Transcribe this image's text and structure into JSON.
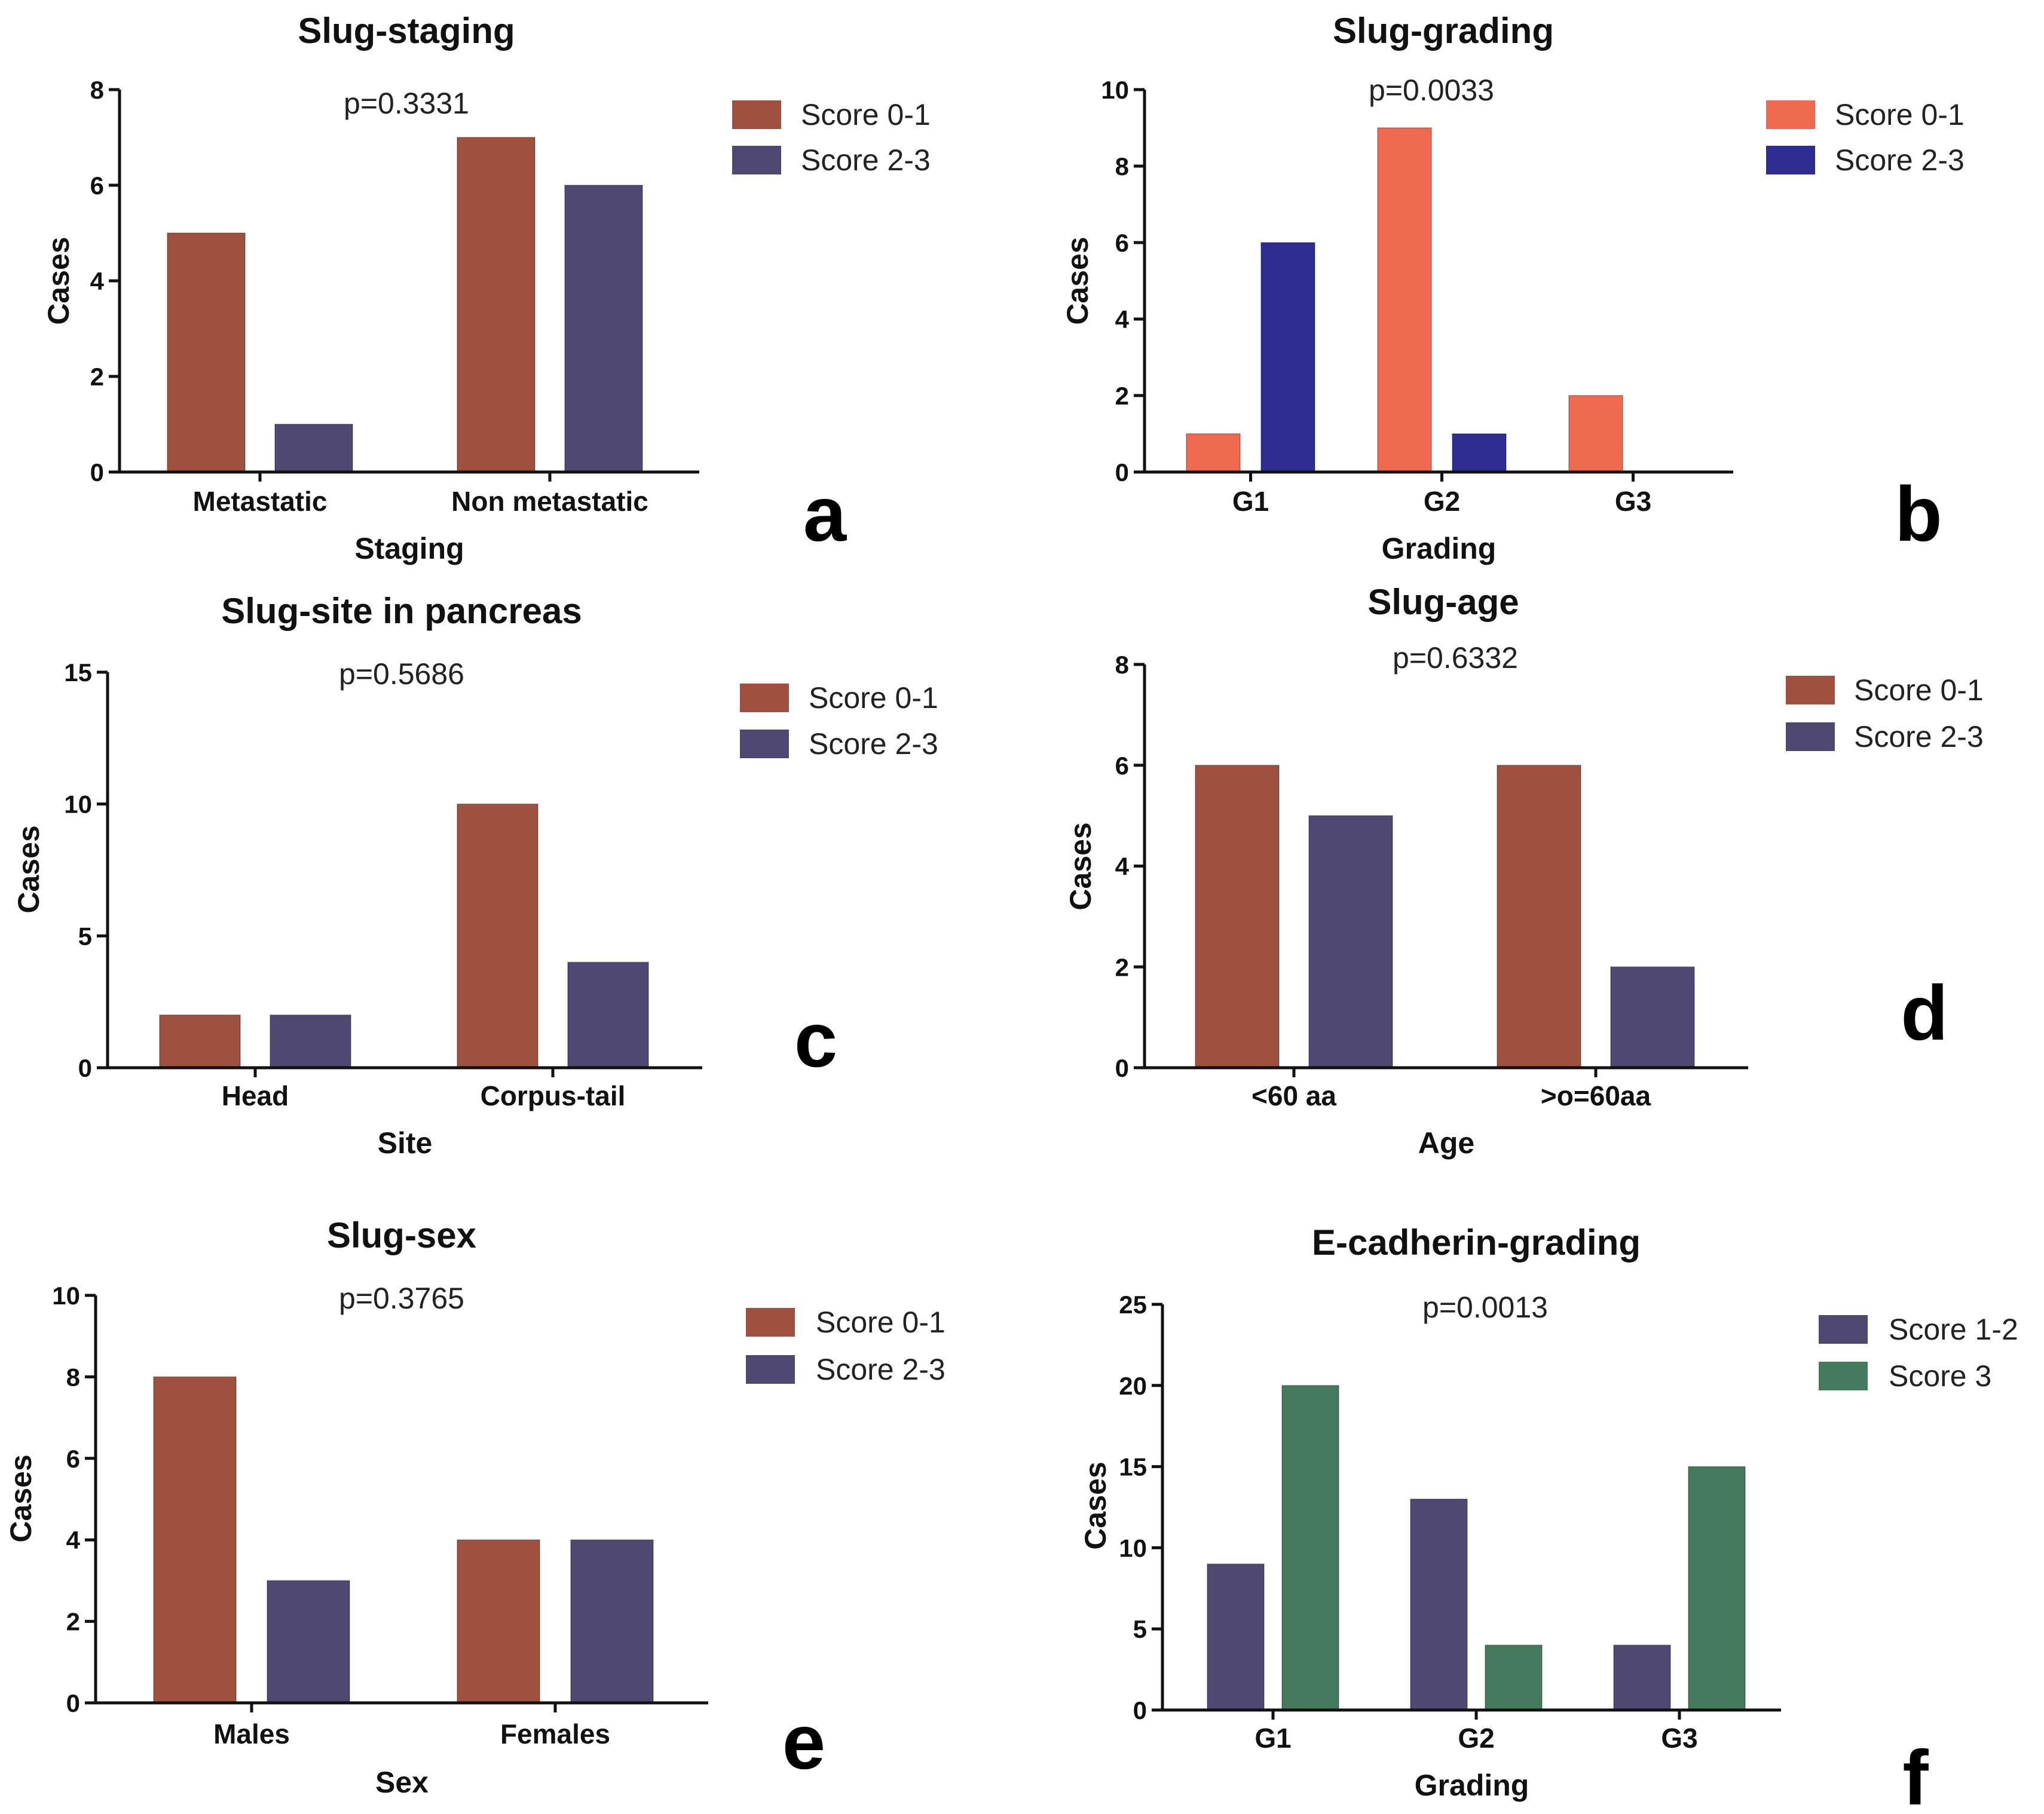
{
  "chart_data": [
    {
      "id": "a",
      "type": "bar",
      "title": "Slug-staging",
      "p_value": "p=0.3331",
      "xlabel": "Staging",
      "ylabel": "Cases",
      "ylim": [
        0,
        8
      ],
      "yticks": [
        0,
        2,
        4,
        6,
        8
      ],
      "ytick_labels": [
        "0",
        "2",
        "4",
        "6",
        "8"
      ],
      "categories": [
        "Metastatic",
        "Non metastatic"
      ],
      "series": [
        {
          "name": "Score 0-1",
          "color": "#A0503F",
          "values": [
            5,
            7
          ]
        },
        {
          "name": "Score 2-3",
          "color": "#4F4870",
          "values": [
            1,
            6
          ]
        }
      ],
      "panel_letter": "a"
    },
    {
      "id": "b",
      "type": "bar",
      "title": "Slug-grading",
      "p_value": "p=0.0033",
      "xlabel": "Grading",
      "ylabel": "Cases",
      "ylim": [
        0,
        10
      ],
      "yticks": [
        0,
        2,
        4,
        6,
        8,
        10
      ],
      "ytick_labels": [
        "0",
        "2",
        "4",
        "6",
        "8",
        "10"
      ],
      "categories": [
        "G1",
        "G2",
        "G3"
      ],
      "series": [
        {
          "name": "Score 0-1",
          "color": "#EE6B50",
          "values": [
            1,
            9,
            2
          ]
        },
        {
          "name": "Score 2-3",
          "color": "#2E2E92",
          "values": [
            6,
            1,
            0
          ]
        }
      ],
      "panel_letter": "b"
    },
    {
      "id": "c",
      "type": "bar",
      "title": "Slug-site in pancreas",
      "p_value": "p=0.5686",
      "xlabel": "Site",
      "ylabel": "Cases",
      "ylim": [
        0,
        15
      ],
      "yticks": [
        0,
        5,
        10,
        15
      ],
      "ytick_labels": [
        "0",
        "5",
        "10",
        "15"
      ],
      "categories": [
        "Head",
        "Corpus-tail"
      ],
      "series": [
        {
          "name": "Score 0-1",
          "color": "#A0503F",
          "values": [
            2,
            10
          ]
        },
        {
          "name": "Score 2-3",
          "color": "#4F4870",
          "values": [
            2,
            4
          ]
        }
      ],
      "panel_letter": "c"
    },
    {
      "id": "d",
      "type": "bar",
      "title": "Slug-age",
      "p_value": "p=0.6332",
      "xlabel": "Age",
      "ylabel": "Cases",
      "ylim": [
        0,
        8
      ],
      "yticks": [
        0,
        2,
        4,
        6,
        8
      ],
      "ytick_labels": [
        "0",
        "2",
        "4",
        "6",
        "8"
      ],
      "categories": [
        "<60 aa",
        ">o=60aa"
      ],
      "series": [
        {
          "name": "Score 0-1",
          "color": "#A0503F",
          "values": [
            6,
            6
          ]
        },
        {
          "name": "Score 2-3",
          "color": "#4F4870",
          "values": [
            5,
            2
          ]
        }
      ],
      "panel_letter": "d"
    },
    {
      "id": "e",
      "type": "bar",
      "title": "Slug-sex",
      "p_value": "p=0.3765",
      "xlabel": "Sex",
      "ylabel": "Cases",
      "ylim": [
        0,
        10
      ],
      "yticks": [
        0,
        2,
        4,
        6,
        8,
        10
      ],
      "ytick_labels": [
        "0",
        "2",
        "4",
        "6",
        "8",
        "10"
      ],
      "categories": [
        "Males",
        "Females"
      ],
      "series": [
        {
          "name": "Score 0-1",
          "color": "#A0503F",
          "values": [
            8,
            4
          ]
        },
        {
          "name": "Score 2-3",
          "color": "#4F4870",
          "values": [
            3,
            4
          ]
        }
      ],
      "panel_letter": "e"
    },
    {
      "id": "f",
      "type": "bar",
      "title": "E-cadherin-grading",
      "p_value": "p=0.0013",
      "xlabel": "Grading",
      "ylabel": "Cases",
      "ylim": [
        0,
        25
      ],
      "yticks": [
        0,
        5,
        10,
        15,
        20,
        25
      ],
      "ytick_labels": [
        "0",
        "5",
        "10",
        "15",
        "20",
        "25"
      ],
      "categories": [
        "G1",
        "G2",
        "G3"
      ],
      "series": [
        {
          "name": "Score 1-2",
          "color": "#4F4870",
          "values": [
            9,
            13,
            4
          ]
        },
        {
          "name": "Score 3",
          "color": "#467A5E",
          "values": [
            20,
            4,
            15
          ]
        }
      ],
      "panel_letter": "f"
    }
  ]
}
